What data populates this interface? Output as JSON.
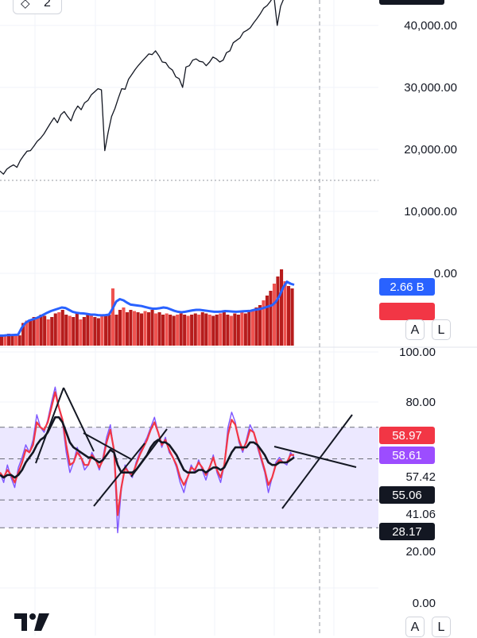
{
  "top_chip": {
    "icon": "layers-icon",
    "count": "2"
  },
  "price_axis_ticks": [
    "40,000.00",
    "30,000.00",
    "20,000.00",
    "10,000.00",
    "0.00"
  ],
  "volume_badges": [
    {
      "text": "2.66 B",
      "color": "#2962ff"
    },
    {
      "text": "",
      "color": "#f23645"
    }
  ],
  "rsi_axis_ticks": [
    "100.00",
    "80.00",
    "57.42",
    "41.06",
    "20.00",
    "0.00"
  ],
  "rsi_badges": [
    {
      "text": "58.97",
      "color": "#f23645"
    },
    {
      "text": "58.61",
      "color": "#9c4dff"
    },
    {
      "text": "55.06",
      "color": "#131722"
    },
    {
      "text": "28.17",
      "color": "#131722"
    }
  ],
  "buttons": {
    "auto": "A",
    "log": "L"
  },
  "colors": {
    "price_line": "#131722",
    "volume_up": "#b71c1c",
    "volume_down": "#ef5350",
    "volume_ma": "#2962ff",
    "rsi_line": "#7e57ff",
    "rsi_ema": "#f23645",
    "rsi_smooth": "#131722",
    "band_fill": "#ece8ff"
  },
  "chart_data": [
    {
      "type": "line",
      "series": [
        {
          "values": [
            16500,
            16000,
            16800,
            17200,
            17500,
            17100,
            18200,
            19000,
            19700,
            19800,
            20500,
            21300,
            21800,
            22500,
            23400,
            24300,
            25100,
            24300,
            25600,
            26100,
            25300,
            24600,
            26100,
            27000,
            26400,
            27500,
            27900,
            28800,
            29300,
            29800,
            29600,
            19800,
            22800,
            25300,
            26600,
            28300,
            29800,
            29700,
            31300,
            32100,
            32900,
            33600,
            34200,
            34800,
            35400,
            35300,
            35900,
            35100,
            34100,
            34000,
            33200,
            32800,
            31700,
            31400,
            30000,
            33300,
            33500,
            34400,
            34600,
            34200,
            34100,
            33500,
            34100,
            34900,
            34600,
            34100,
            34400,
            35600,
            35900,
            37200,
            37600,
            38000,
            38900,
            39200,
            39600,
            40400,
            41100,
            41900,
            42800,
            43200,
            43900,
            44800,
            40000,
            43100,
            44400,
            44800,
            45500,
            46200
          ]
        }
      ],
      "yaxis_ticks": [
        10000,
        20000,
        30000,
        40000
      ],
      "ylim": [
        10000,
        46000
      ]
    },
    {
      "type": "bar",
      "series": [
        {
          "values": [
            0.45,
            0.4,
            0.5,
            0.44,
            0.48,
            0.43,
            0.95,
            1.05,
            1.1,
            1.2,
            1.15,
            1.3,
            1.25,
            1.1,
            1.2,
            1.35,
            1.4,
            1.5,
            1.3,
            1.25,
            1.2,
            1.35,
            1.1,
            1.2,
            1.3,
            1.25,
            1.2,
            1.15,
            1.3,
            1.25,
            1.3,
            2.4,
            1.3,
            1.5,
            1.6,
            1.4,
            1.5,
            1.45,
            1.4,
            1.35,
            1.45,
            1.4,
            1.5,
            1.35,
            1.4,
            1.3,
            1.35,
            1.3,
            1.25,
            1.3,
            1.35,
            1.3,
            1.25,
            1.3,
            1.35,
            1.3,
            1.4,
            1.35,
            1.3,
            1.25,
            1.3,
            1.35,
            1.4,
            1.3,
            1.25,
            1.35,
            1.3,
            1.4,
            1.35,
            1.45,
            1.5,
            1.6,
            1.7,
            1.9,
            2.1,
            2.3,
            2.6,
            2.9,
            3.2,
            2.7,
            2.5,
            2.4
          ]
        },
        {
          "name": "",
          "values": [
            0.42,
            0.42,
            0.44,
            0.44,
            0.45,
            0.46,
            0.75,
            0.95,
            1.05,
            1.1,
            1.15,
            1.22,
            1.3,
            1.38,
            1.45,
            1.5,
            1.55,
            1.6,
            1.58,
            1.5,
            1.42,
            1.38,
            1.36,
            1.35,
            1.33,
            1.3,
            1.3,
            1.28,
            1.27,
            1.28,
            1.3,
            1.55,
            1.85,
            1.95,
            1.9,
            1.8,
            1.72,
            1.7,
            1.68,
            1.66,
            1.62,
            1.58,
            1.55,
            1.55,
            1.57,
            1.6,
            1.58,
            1.52,
            1.46,
            1.42,
            1.4,
            1.42,
            1.45,
            1.48,
            1.5,
            1.5,
            1.48,
            1.46,
            1.44,
            1.42,
            1.42,
            1.43,
            1.45,
            1.44,
            1.43,
            1.42,
            1.43,
            1.44,
            1.45,
            1.46,
            1.5,
            1.52,
            1.55,
            1.6,
            1.65,
            1.7,
            1.85,
            2.1,
            2.45,
            2.68,
            2.6,
            2.55
          ]
        }
      ]
    },
    {
      "type": "line",
      "series": [
        {
          "values": [
            52,
            48,
            55,
            50,
            46,
            54,
            58,
            63,
            60,
            65,
            75,
            70,
            68,
            73,
            80,
            86,
            78,
            72,
            60,
            52,
            56,
            62,
            58,
            53,
            55,
            60,
            57,
            53,
            58,
            66,
            71,
            60,
            28,
            45,
            55,
            52,
            50,
            56,
            60,
            63,
            66,
            70,
            74,
            68,
            62,
            66,
            60,
            58,
            54,
            48,
            44,
            50,
            55,
            52,
            57,
            53,
            49,
            54,
            59,
            52,
            48,
            55,
            70,
            76,
            72,
            64,
            60,
            65,
            71,
            68,
            62,
            57,
            52,
            44,
            50,
            56,
            58,
            56,
            55,
            60,
            58
          ]
        },
        {
          "values": [
            52,
            50,
            53,
            51,
            48,
            52,
            56,
            61,
            60,
            63,
            72,
            70,
            69,
            72,
            78,
            84,
            78,
            73,
            63,
            55,
            56,
            60,
            58,
            55,
            55,
            59,
            57,
            54,
            57,
            64,
            69,
            61,
            35,
            46,
            54,
            52,
            51,
            55,
            59,
            62,
            65,
            69,
            72,
            68,
            63,
            65,
            61,
            58,
            55,
            50,
            47,
            50,
            54,
            53,
            56,
            54,
            51,
            54,
            58,
            53,
            50,
            55,
            67,
            73,
            71,
            65,
            61,
            64,
            69,
            68,
            63,
            58,
            53,
            47,
            50,
            55,
            57,
            56,
            56,
            59,
            59
          ]
        },
        {
          "values": [
            51,
            50,
            51,
            51,
            50,
            51,
            53,
            56,
            58,
            60,
            63,
            65,
            66,
            68,
            71,
            74,
            74,
            72,
            68,
            64,
            62,
            61,
            60,
            59,
            58,
            58,
            57,
            56,
            57,
            59,
            61,
            60,
            55,
            52,
            52,
            52,
            52,
            53,
            55,
            57,
            59,
            62,
            64,
            65,
            64,
            64,
            63,
            61,
            59,
            56,
            53,
            52,
            52,
            52,
            53,
            53,
            52,
            53,
            54,
            54,
            53,
            54,
            57,
            60,
            62,
            62,
            62,
            62,
            64,
            64,
            63,
            61,
            59,
            56,
            55,
            55,
            56,
            56,
            56,
            57,
            58
          ]
        }
      ],
      "reference_lines": [
        70,
        57.42,
        41.06,
        30
      ],
      "yaxis_ticks": [
        0,
        20,
        80,
        100
      ],
      "ylim": [
        0,
        100
      ]
    }
  ]
}
